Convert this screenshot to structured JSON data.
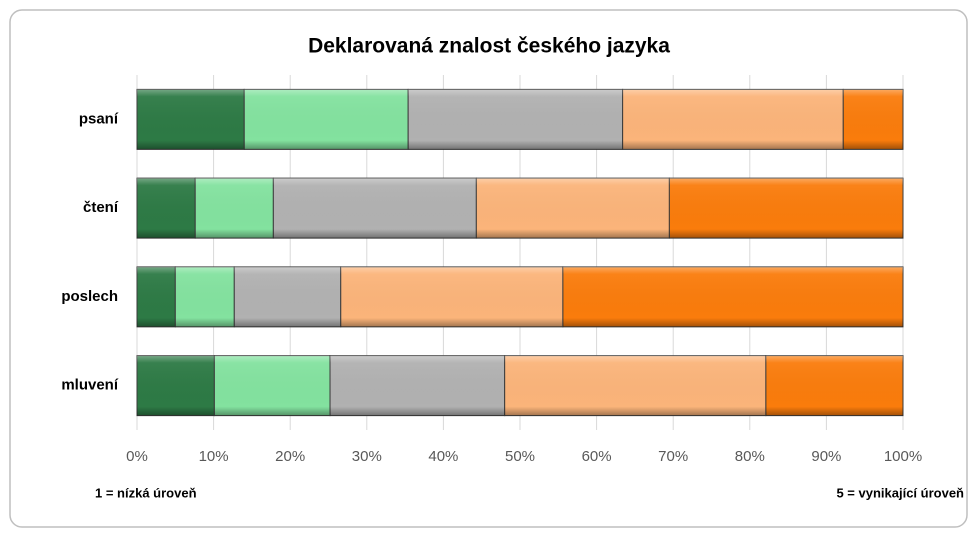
{
  "chart_data": {
    "type": "stacked-bar-horizontal",
    "title": "Deklarovaná znalost českého jazyka",
    "categories": [
      "psaní",
      "čtení",
      "poslech",
      "mluvení"
    ],
    "series": [
      {
        "color": "#2d7a45",
        "values": [
          14.0,
          7.6,
          5.0,
          10.1
        ]
      },
      {
        "color": "#83e29f",
        "values": [
          21.4,
          10.2,
          7.7,
          15.1
        ]
      },
      {
        "color": "#b1b1b1",
        "values": [
          28.0,
          26.5,
          13.9,
          22.8
        ]
      },
      {
        "color": "#fbb47a",
        "values": [
          28.8,
          25.2,
          29.0,
          34.1
        ]
      },
      {
        "color": "#fa7c0c",
        "values": [
          7.8,
          30.5,
          44.4,
          17.9
        ]
      }
    ],
    "xlim": [
      0,
      100
    ],
    "xticks": [
      {
        "value": 0,
        "label": "0%"
      },
      {
        "value": 10,
        "label": "10%"
      },
      {
        "value": 20,
        "label": "20%"
      },
      {
        "value": 30,
        "label": "30%"
      },
      {
        "value": 40,
        "label": "40%"
      },
      {
        "value": 50,
        "label": "50%"
      },
      {
        "value": 60,
        "label": "60%"
      },
      {
        "value": 70,
        "label": "70%"
      },
      {
        "value": 80,
        "label": "80%"
      },
      {
        "value": 90,
        "label": "90%"
      },
      {
        "value": 100,
        "label": "100%"
      }
    ],
    "grid": true,
    "annotations": [
      "1 = nízká úroveň",
      "5 = vynikající úroveň"
    ]
  }
}
